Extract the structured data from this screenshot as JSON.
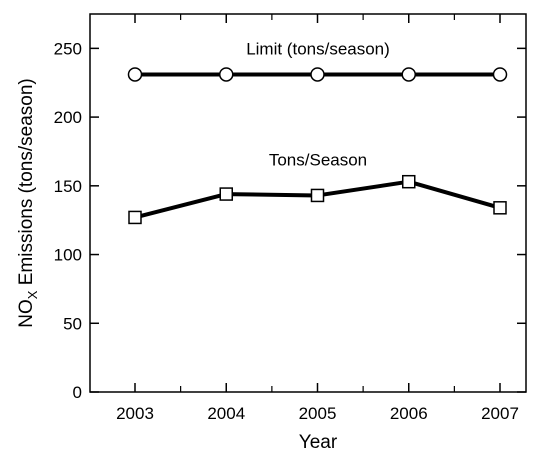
{
  "chart_data": {
    "type": "line",
    "title": "",
    "xlabel": "Year",
    "ylabel_main": "NO",
    "ylabel_sub": "X",
    "ylabel_rest": " Emissions (tons/season)",
    "categories": [
      "2003",
      "2004",
      "2005",
      "2006",
      "2007"
    ],
    "ylim": [
      0,
      275
    ],
    "yticks": [
      0,
      50,
      100,
      150,
      200,
      250
    ],
    "grid": false,
    "series": [
      {
        "name": "Limit (tons/season)",
        "marker": "circle",
        "values": [
          231,
          231,
          231,
          231,
          231
        ]
      },
      {
        "name": "Tons/Season",
        "marker": "square",
        "values": [
          127,
          144,
          143,
          153,
          134
        ]
      }
    ]
  }
}
